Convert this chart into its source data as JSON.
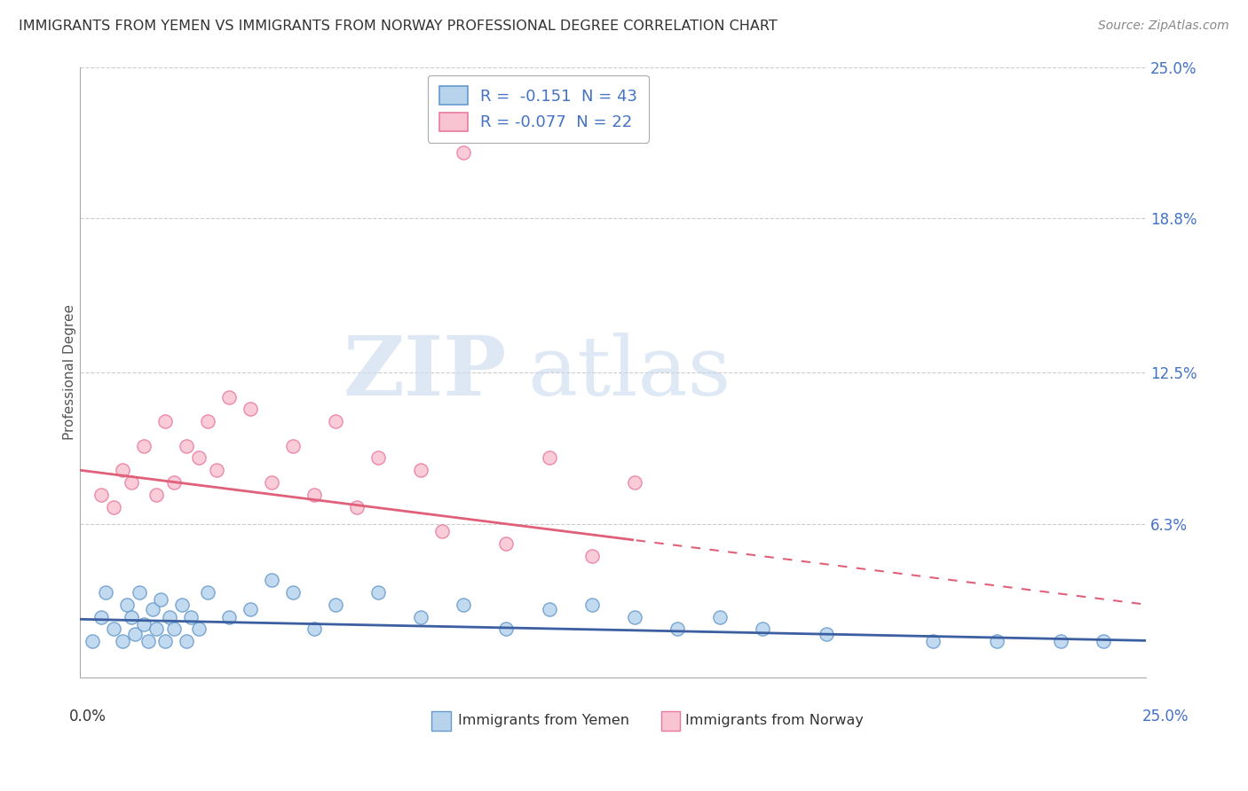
{
  "title": "IMMIGRANTS FROM YEMEN VS IMMIGRANTS FROM NORWAY PROFESSIONAL DEGREE CORRELATION CHART",
  "source": "Source: ZipAtlas.com",
  "ylabel": "Professional Degree",
  "ytick_values": [
    0.0,
    6.3,
    12.5,
    18.8,
    25.0
  ],
  "ytick_labels": [
    "",
    "6.3%",
    "12.5%",
    "18.8%",
    "25.0%"
  ],
  "xlim": [
    0.0,
    25.0
  ],
  "ylim": [
    0.0,
    25.0
  ],
  "legend_r1": "R =  -0.151  N = 43",
  "legend_r2": "R = -0.077  N = 22",
  "yemen_fill_color": "#b8d4ed",
  "yemen_edge_color": "#6699cc",
  "norway_fill_color": "#f9c4d2",
  "norway_edge_color": "#e87aa0",
  "yemen_line_color": "#3b5fa0",
  "norway_line_color": "#e0607a",
  "text_color": "#4472c4",
  "yemen_x": [
    0.3,
    0.5,
    0.6,
    0.8,
    1.0,
    1.1,
    1.2,
    1.3,
    1.4,
    1.5,
    1.6,
    1.7,
    1.8,
    1.9,
    2.0,
    2.1,
    2.2,
    2.4,
    2.5,
    2.6,
    2.8,
    3.0,
    3.5,
    4.0,
    4.5,
    5.0,
    5.5,
    6.0,
    7.0,
    8.0,
    9.0,
    10.0,
    11.0,
    12.0,
    13.0,
    14.0,
    15.0,
    16.0,
    17.5,
    20.0,
    21.5,
    23.0,
    24.0
  ],
  "yemen_y": [
    1.5,
    2.5,
    3.5,
    2.0,
    1.5,
    3.0,
    2.5,
    1.8,
    3.5,
    2.2,
    1.5,
    2.8,
    2.0,
    3.2,
    1.5,
    2.5,
    2.0,
    3.0,
    1.5,
    2.5,
    2.0,
    3.5,
    2.5,
    2.8,
    4.0,
    3.5,
    2.0,
    3.0,
    3.5,
    2.5,
    3.0,
    2.0,
    2.8,
    3.0,
    2.5,
    2.0,
    2.5,
    2.0,
    1.8,
    1.5,
    1.5,
    1.5,
    1.5
  ],
  "norway_x": [
    0.5,
    1.0,
    1.5,
    2.0,
    2.5,
    3.0,
    3.5,
    4.0,
    5.0,
    6.0,
    7.0,
    8.0,
    9.0,
    11.0,
    13.0
  ],
  "norway_y": [
    7.5,
    8.5,
    9.5,
    10.5,
    9.5,
    10.5,
    11.5,
    11.0,
    9.5,
    10.5,
    9.0,
    8.5,
    21.5,
    9.0,
    8.0
  ],
  "norway_x2": [
    0.8,
    1.2,
    1.8,
    2.2,
    2.8,
    3.2,
    4.5,
    5.5,
    6.5,
    8.5,
    10.0,
    12.0
  ],
  "norway_y2": [
    7.0,
    8.0,
    7.5,
    8.0,
    9.0,
    8.5,
    8.0,
    7.5,
    7.0,
    6.0,
    5.5,
    5.0
  ]
}
